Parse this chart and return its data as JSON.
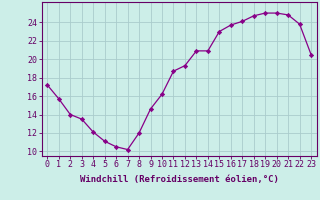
{
  "hours": [
    0,
    1,
    2,
    3,
    4,
    5,
    6,
    7,
    8,
    9,
    10,
    11,
    12,
    13,
    14,
    15,
    16,
    17,
    18,
    19,
    20,
    21,
    22,
    23
  ],
  "values": [
    17.2,
    15.7,
    14.0,
    13.5,
    12.1,
    11.1,
    10.5,
    10.2,
    12.0,
    14.6,
    16.2,
    18.7,
    19.3,
    20.9,
    20.9,
    23.0,
    23.7,
    24.1,
    24.7,
    25.0,
    25.0,
    24.8,
    23.8,
    20.5
  ],
  "line_color": "#880088",
  "marker": "D",
  "marker_size": 2.2,
  "bg_color": "#cceee8",
  "grid_color": "#aacccc",
  "xlabel": "Windchill (Refroidissement éolien,°C)",
  "ylabel_ticks": [
    10,
    12,
    14,
    16,
    18,
    20,
    22,
    24
  ],
  "ylim": [
    9.5,
    26.2
  ],
  "xlim": [
    -0.5,
    23.5
  ],
  "tick_color": "#660066",
  "axis_color": "#660066",
  "label_fontsize": 6.5,
  "tick_fontsize": 6.0
}
